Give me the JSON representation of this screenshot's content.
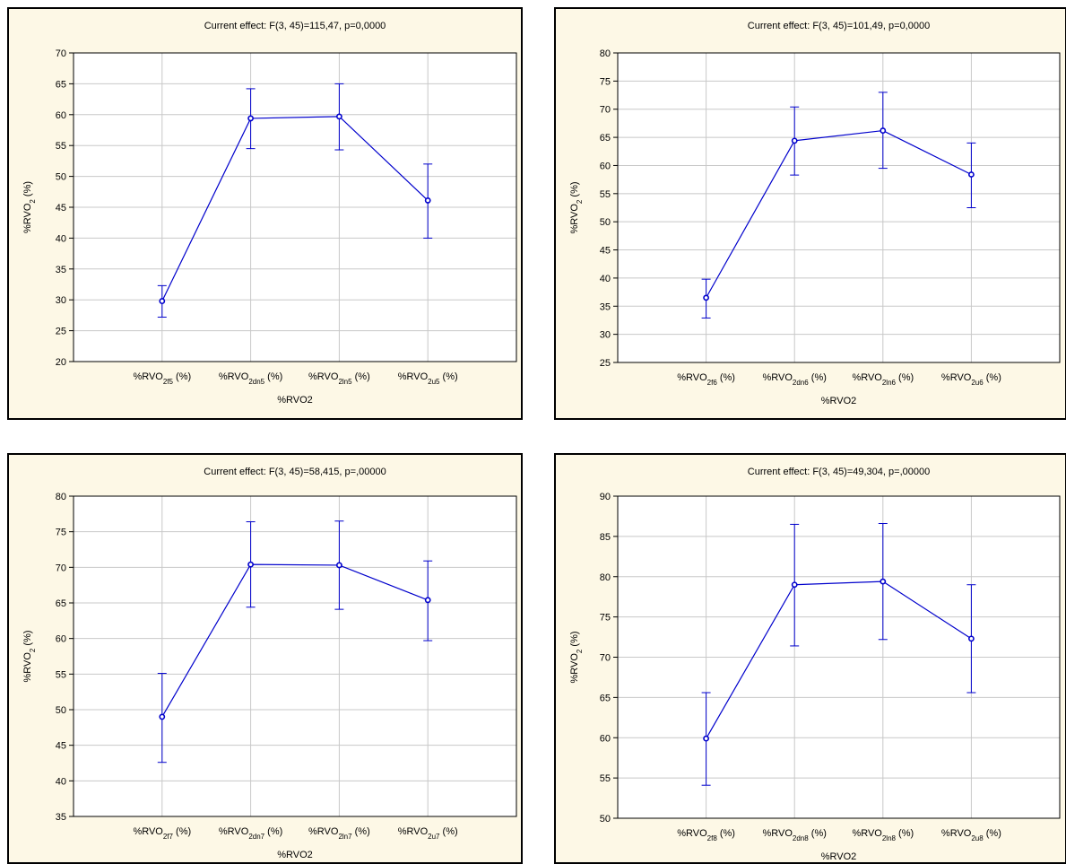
{
  "chart_data": [
    {
      "type": "line",
      "title": "Current effect: F(3, 45)=115,47, p=0,0000",
      "ylabel": "%RVO2 (%)",
      "xlabel": "%RVO2",
      "ylim": [
        20,
        70
      ],
      "yticks": [
        20,
        25,
        30,
        35,
        40,
        45,
        50,
        55,
        60,
        65,
        70
      ],
      "categories": [
        {
          "base": "%RVO",
          "sub": "2f5",
          "tail": " (%)"
        },
        {
          "base": "%RVO",
          "sub": "2dn5",
          "tail": " (%)"
        },
        {
          "base": "%RVO",
          "sub": "2ln5",
          "tail": " (%)"
        },
        {
          "base": "%RVO",
          "sub": "2u5",
          "tail": " (%)"
        }
      ],
      "values": [
        29.8,
        59.4,
        59.7,
        46.1
      ],
      "err_low": [
        27.2,
        54.5,
        54.3,
        40.0
      ],
      "err_high": [
        32.3,
        64.2,
        65.0,
        52.0
      ],
      "grid": true,
      "color": "#0000cc"
    },
    {
      "type": "line",
      "title": "Current effect: F(3, 45)=101,49, p=0,0000",
      "ylabel": "%RVO2 (%)",
      "xlabel": "%RVO2",
      "ylim": [
        25,
        80
      ],
      "yticks": [
        25,
        30,
        35,
        40,
        45,
        50,
        55,
        60,
        65,
        70,
        75,
        80
      ],
      "categories": [
        {
          "base": "%RVO",
          "sub": "2f6",
          "tail": " (%)"
        },
        {
          "base": "%RVO",
          "sub": "2dn6",
          "tail": " (%)"
        },
        {
          "base": "%RVO",
          "sub": "2ln6",
          "tail": " (%)"
        },
        {
          "base": "%RVO",
          "sub": "2u6",
          "tail": " (%)"
        }
      ],
      "values": [
        36.5,
        64.4,
        66.2,
        58.4
      ],
      "err_low": [
        32.9,
        58.3,
        59.5,
        52.5
      ],
      "err_high": [
        39.8,
        70.4,
        73.0,
        64.0
      ],
      "grid": true,
      "color": "#0000cc"
    },
    {
      "type": "line",
      "title": "Current effect: F(3, 45)=58,415, p=,00000",
      "ylabel": "%RVO2 (%)",
      "xlabel": "%RVO2",
      "ylim": [
        35,
        80
      ],
      "yticks": [
        35,
        40,
        45,
        50,
        55,
        60,
        65,
        70,
        75,
        80
      ],
      "categories": [
        {
          "base": "%RVO",
          "sub": "2f7",
          "tail": " (%)"
        },
        {
          "base": "%RVO",
          "sub": "2dn7",
          "tail": " (%)"
        },
        {
          "base": "%RVO",
          "sub": "2ln7",
          "tail": " (%)"
        },
        {
          "base": "%RVO",
          "sub": "2u7",
          "tail": " (%)"
        }
      ],
      "values": [
        49.0,
        70.4,
        70.3,
        65.4
      ],
      "err_low": [
        42.6,
        64.4,
        64.1,
        59.7
      ],
      "err_high": [
        55.1,
        76.4,
        76.5,
        70.9
      ],
      "grid": true,
      "color": "#0000cc"
    },
    {
      "type": "line",
      "title": "Current effect: F(3, 45)=49,304, p=,00000",
      "ylabel": "%RVO2 (%)",
      "xlabel": "%RVO2",
      "ylim": [
        50,
        90
      ],
      "yticks": [
        50,
        55,
        60,
        65,
        70,
        75,
        80,
        85,
        90
      ],
      "categories": [
        {
          "base": "%RVO",
          "sub": "2f8",
          "tail": " (%)"
        },
        {
          "base": "%RVO",
          "sub": "2dn8",
          "tail": " (%)"
        },
        {
          "base": "%RVO",
          "sub": "2ln8",
          "tail": " (%)"
        },
        {
          "base": "%RVO",
          "sub": "2u8",
          "tail": " (%)"
        }
      ],
      "values": [
        59.9,
        79.0,
        79.4,
        72.3
      ],
      "err_low": [
        54.1,
        71.4,
        72.2,
        65.6
      ],
      "err_high": [
        65.6,
        86.5,
        86.6,
        79.0
      ],
      "grid": true,
      "color": "#0000cc"
    }
  ]
}
